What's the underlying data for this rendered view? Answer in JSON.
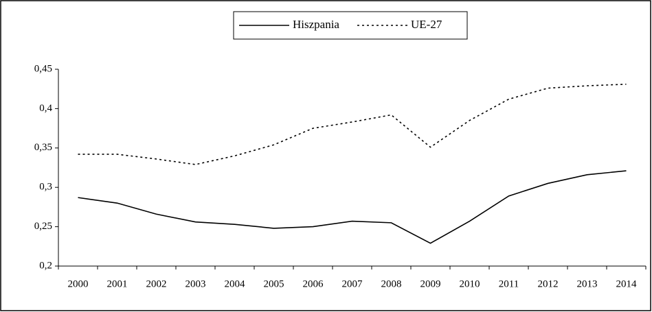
{
  "chart_data": {
    "type": "line",
    "categories": [
      "2000",
      "2001",
      "2002",
      "2003",
      "2004",
      "2005",
      "2006",
      "2007",
      "2008",
      "2009",
      "2010",
      "2011",
      "2012",
      "2013",
      "2014"
    ],
    "series": [
      {
        "name": "Hiszpania",
        "color": "#000000",
        "dash": "solid",
        "values": [
          0.287,
          0.28,
          0.266,
          0.256,
          0.253,
          0.248,
          0.25,
          0.257,
          0.255,
          0.229,
          0.257,
          0.289,
          0.305,
          0.316,
          0.321
        ]
      },
      {
        "name": "UE-27",
        "color": "#000000",
        "dash": "dotted",
        "values": [
          0.342,
          0.342,
          0.336,
          0.329,
          0.34,
          0.354,
          0.375,
          0.383,
          0.392,
          0.351,
          0.385,
          0.412,
          0.426,
          0.429,
          0.431
        ]
      }
    ],
    "ylim": [
      0.2,
      0.45
    ],
    "yticks": [
      {
        "value": 0.2,
        "label": "0,2"
      },
      {
        "value": 0.25,
        "label": "0,25"
      },
      {
        "value": 0.3,
        "label": "0,3"
      },
      {
        "value": 0.35,
        "label": "0,35"
      },
      {
        "value": 0.4,
        "label": "0,4"
      },
      {
        "value": 0.45,
        "label": "0,45"
      }
    ],
    "grid": false,
    "legend": "top"
  }
}
